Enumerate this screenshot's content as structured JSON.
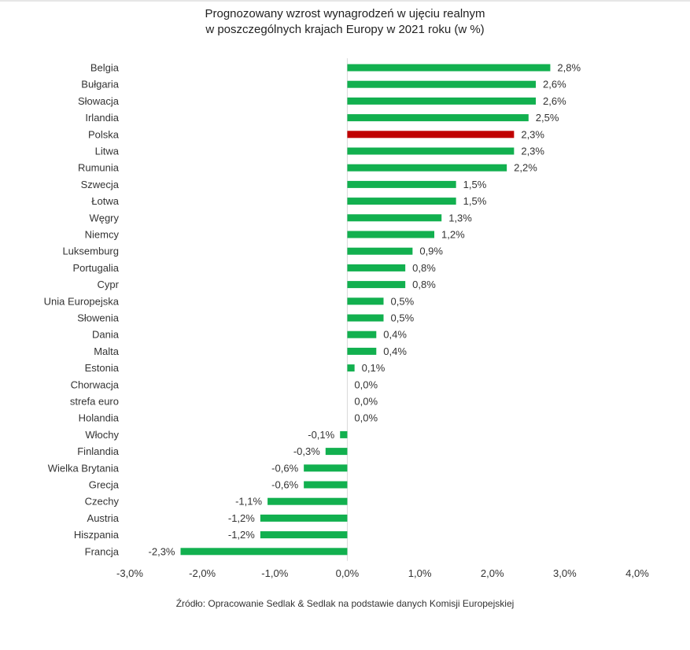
{
  "chart_data": {
    "type": "bar",
    "orientation": "horizontal",
    "title_line1": "Prognozowany wzrost wynagrodzeń w ujęciu realnym",
    "title_line2": "w poszczególnych krajach Europy w 2021 roku (w %)",
    "categories": [
      "Belgia",
      "Bułgaria",
      "Słowacja",
      "Irlandia",
      "Polska",
      "Litwa",
      "Rumunia",
      "Szwecja",
      "Łotwa",
      "Węgry",
      "Niemcy",
      "Luksemburg",
      "Portugalia",
      "Cypr",
      "Unia Europejska",
      "Słowenia",
      "Dania",
      "Malta",
      "Estonia",
      "Chorwacja",
      "strefa euro",
      "Holandia",
      "Włochy",
      "Finlandia",
      "Wielka Brytania",
      "Grecja",
      "Czechy",
      "Austria",
      "Hiszpania",
      "Francja"
    ],
    "values": [
      2.8,
      2.6,
      2.6,
      2.5,
      2.3,
      2.3,
      2.2,
      1.5,
      1.5,
      1.3,
      1.2,
      0.9,
      0.8,
      0.8,
      0.5,
      0.5,
      0.4,
      0.4,
      0.1,
      0.0,
      0.0,
      0.0,
      -0.1,
      -0.3,
      -0.6,
      -0.6,
      -1.1,
      -1.2,
      -1.2,
      -2.3
    ],
    "value_labels": [
      "2,8%",
      "2,6%",
      "2,6%",
      "2,5%",
      "2,3%",
      "2,3%",
      "2,2%",
      "1,5%",
      "1,5%",
      "1,3%",
      "1,2%",
      "0,9%",
      "0,8%",
      "0,8%",
      "0,5%",
      "0,5%",
      "0,4%",
      "0,4%",
      "0,1%",
      "0,0%",
      "0,0%",
      "0,0%",
      "-0,1%",
      "-0,3%",
      "-0,6%",
      "-0,6%",
      "-1,1%",
      "-1,2%",
      "-1,2%",
      "-2,3%"
    ],
    "xlim": [
      -3.0,
      4.0
    ],
    "xticks": [
      -3,
      -2,
      -1,
      0,
      1,
      2,
      3,
      4
    ],
    "xtick_labels": [
      "-3,0%",
      "-2,0%",
      "-1,0%",
      "0,0%",
      "1,0%",
      "2,0%",
      "3,0%",
      "4,0%"
    ],
    "grid": false,
    "bar_color": "#12b04f",
    "highlight_category": "Polska",
    "highlight_color": "#c00000"
  },
  "source": "Źródło: Opracowanie Sedlak & Sedlak na podstawie danych Komisji Europejskiej"
}
